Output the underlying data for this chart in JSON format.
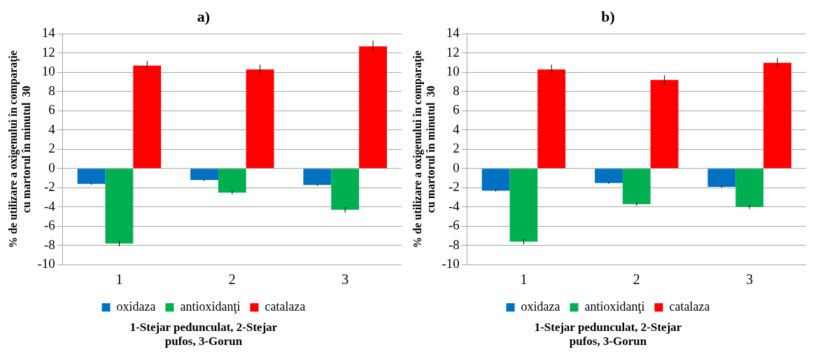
{
  "chart_data": [
    {
      "type": "bar",
      "title": "a)",
      "ylabel": "% de utilizare a oxigenului în comparaţie cu martorul în minutul  30",
      "xlabel": "1-Stejar pedunculat, 2-Stejar pufos, 3-Gorun",
      "categories": [
        "1",
        "2",
        "3"
      ],
      "ylim": [
        -10,
        14
      ],
      "yticks": [
        -10,
        -8,
        -6,
        -4,
        -2,
        0,
        2,
        4,
        6,
        8,
        10,
        12,
        14
      ],
      "grid": "y",
      "legend": "bottom",
      "series": [
        {
          "name": "oxidaza",
          "color": "#0070c0",
          "values": [
            -1.6,
            -1.2,
            -1.7
          ],
          "errors": [
            0.1,
            0.1,
            0.1
          ]
        },
        {
          "name": "antioxidanţi",
          "color": "#00b050",
          "values": [
            -7.8,
            -2.5,
            -4.3
          ],
          "errors": [
            0.3,
            0.2,
            0.3
          ]
        },
        {
          "name": "catalaza",
          "color": "#ff0000",
          "values": [
            10.7,
            10.3,
            12.7
          ],
          "errors": [
            0.5,
            0.5,
            0.6
          ]
        }
      ]
    },
    {
      "type": "bar",
      "title": "b)",
      "ylabel": "% de utilizare a oxigenului în comparaţie cu martorul în minutul  30",
      "xlabel": "1-Stejar pedunculat, 2-Stejar pufos, 3-Gorun",
      "categories": [
        "1",
        "2",
        "3"
      ],
      "ylim": [
        -10,
        14
      ],
      "yticks": [
        -10,
        -8,
        -6,
        -4,
        -2,
        0,
        2,
        4,
        6,
        8,
        10,
        12,
        14
      ],
      "grid": "y",
      "legend": "bottom",
      "series": [
        {
          "name": "oxidaza",
          "color": "#0070c0",
          "values": [
            -2.3,
            -1.5,
            -1.9
          ],
          "errors": [
            0.1,
            0.1,
            0.1
          ]
        },
        {
          "name": "antioxidanţi",
          "color": "#00b050",
          "values": [
            -7.6,
            -3.7,
            -4.0
          ],
          "errors": [
            0.3,
            0.2,
            0.2
          ]
        },
        {
          "name": "catalaza",
          "color": "#ff0000",
          "values": [
            10.3,
            9.2,
            11.0
          ],
          "errors": [
            0.5,
            0.5,
            0.5
          ]
        }
      ]
    }
  ]
}
